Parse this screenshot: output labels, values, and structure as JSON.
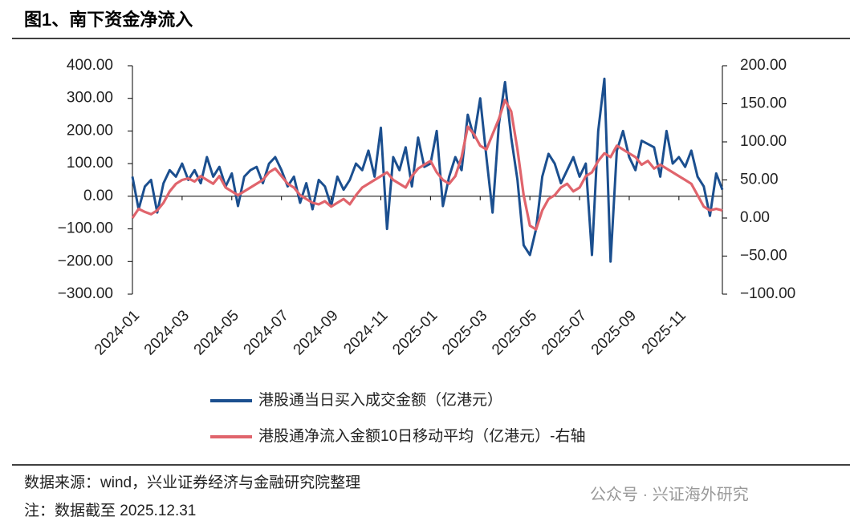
{
  "header": {
    "title": "图1、南下资金净流入"
  },
  "chart_data": {
    "type": "line",
    "categories": [
      "2024-01",
      null,
      null,
      null,
      null,
      null,
      null,
      null,
      "2024-03",
      null,
      null,
      null,
      null,
      null,
      null,
      null,
      "2024-05",
      null,
      null,
      null,
      null,
      null,
      null,
      null,
      "2024-07",
      null,
      null,
      null,
      null,
      null,
      null,
      null,
      "2024-09",
      null,
      null,
      null,
      null,
      null,
      null,
      null,
      "2024-11",
      null,
      null,
      null,
      null,
      null,
      null,
      null,
      "2025-01",
      null,
      null,
      null,
      null,
      null,
      null,
      null,
      "2025-03",
      null,
      null,
      null,
      null,
      null,
      null,
      null,
      "2025-05",
      null,
      null,
      null,
      null,
      null,
      null,
      null,
      "2025-07",
      null,
      null,
      null,
      null,
      null,
      null,
      null,
      "2025-09",
      null,
      null,
      null,
      null,
      null,
      null,
      null,
      "2025-11",
      null,
      null,
      null,
      null,
      null,
      null,
      null
    ],
    "series": [
      {
        "name": "港股通当日买入成交金额（亿港元）",
        "color": "#1b4f8f",
        "axis": "y",
        "values": [
          60,
          -40,
          30,
          50,
          -50,
          40,
          80,
          60,
          100,
          50,
          80,
          40,
          120,
          60,
          90,
          30,
          70,
          -30,
          60,
          80,
          90,
          40,
          100,
          120,
          80,
          30,
          60,
          -20,
          40,
          -40,
          50,
          30,
          -30,
          60,
          20,
          50,
          100,
          80,
          140,
          60,
          210,
          -100,
          120,
          80,
          150,
          30,
          180,
          90,
          100,
          200,
          -30,
          60,
          120,
          80,
          250,
          180,
          300,
          120,
          -50,
          220,
          350,
          180,
          50,
          -150,
          -180,
          -100,
          60,
          130,
          100,
          40,
          80,
          120,
          60,
          100,
          -180,
          200,
          360,
          -200,
          140,
          200,
          120,
          80,
          170,
          160,
          150,
          60,
          200,
          100,
          120,
          90,
          140,
          60,
          30,
          -60,
          70,
          20
        ]
      },
      {
        "name": "港股通净流入金额10日移动平均（亿港元）-右轴",
        "color": "#e0646c",
        "axis": "y2",
        "values": [
          0,
          12,
          8,
          5,
          10,
          20,
          35,
          45,
          50,
          52,
          48,
          55,
          50,
          45,
          55,
          40,
          35,
          30,
          35,
          40,
          45,
          50,
          60,
          65,
          55,
          45,
          40,
          30,
          25,
          20,
          18,
          22,
          15,
          20,
          25,
          18,
          30,
          40,
          45,
          50,
          55,
          60,
          50,
          45,
          40,
          55,
          65,
          70,
          75,
          60,
          50,
          45,
          55,
          80,
          120,
          110,
          95,
          90,
          110,
          130,
          155,
          140,
          90,
          30,
          -10,
          -15,
          10,
          25,
          30,
          40,
          45,
          35,
          40,
          55,
          60,
          75,
          85,
          80,
          95,
          90,
          85,
          80,
          70,
          75,
          65,
          70,
          65,
          60,
          55,
          50,
          45,
          30,
          15,
          10,
          12,
          10
        ]
      }
    ],
    "ylim": [
      -300,
      400
    ],
    "yticks": [
      {
        "value": -300,
        "label": "−300.00"
      },
      {
        "value": -200,
        "label": "−200.00"
      },
      {
        "value": -100,
        "label": "−100.00"
      },
      {
        "value": 0,
        "label": "0.00"
      },
      {
        "value": 100,
        "label": "100.00"
      },
      {
        "value": 200,
        "label": "200.00"
      },
      {
        "value": 300,
        "label": "300.00"
      },
      {
        "value": 400,
        "label": "400.00"
      }
    ],
    "y2lim": [
      -100,
      200
    ],
    "y2ticks": [
      {
        "value": -100,
        "label": "−100.00"
      },
      {
        "value": -50,
        "label": "−50.00"
      },
      {
        "value": 0,
        "label": "0.00"
      },
      {
        "value": 50,
        "label": "50.00"
      },
      {
        "value": 100,
        "label": "100.00"
      },
      {
        "value": 150,
        "label": "150.00"
      },
      {
        "value": 200,
        "label": "200.00"
      }
    ],
    "grid": false
  },
  "footer": {
    "source": "数据来源：wind，兴业证券经济与金融研究院整理",
    "note": "注：数据截至 2025.12.31"
  },
  "watermark": "公众号 · 兴证海外研究"
}
